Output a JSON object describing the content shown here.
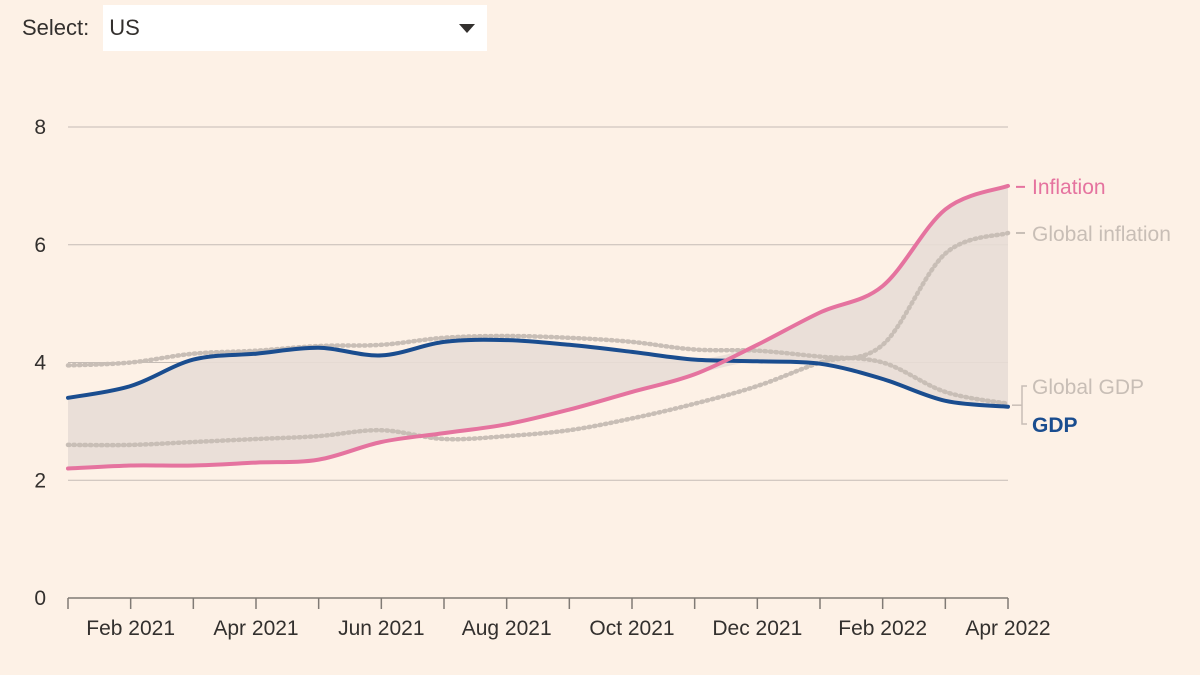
{
  "selector": {
    "label": "Select:",
    "value": "US"
  },
  "colors": {
    "background": "#fdf1e6",
    "inflation": "#e5739f",
    "gdp": "#1a4d8f",
    "global": "#c8beb6",
    "band": "#e8ddd6",
    "grid": "#c5bcb5",
    "axis": "#807a75"
  },
  "chart_data": {
    "type": "line",
    "x": [
      "2021-01",
      "2021-02",
      "2021-03",
      "2021-04",
      "2021-05",
      "2021-06",
      "2021-07",
      "2021-08",
      "2021-09",
      "2021-10",
      "2021-11",
      "2021-12",
      "2022-01",
      "2022-02",
      "2022-03",
      "2022-04"
    ],
    "x_ticks": [
      {
        "x": "2021-02",
        "label": "Feb 2021"
      },
      {
        "x": "2021-04",
        "label": "Apr 2021"
      },
      {
        "x": "2021-06",
        "label": "Jun 2021"
      },
      {
        "x": "2021-08",
        "label": "Aug 2021"
      },
      {
        "x": "2021-10",
        "label": "Oct 2021"
      },
      {
        "x": "2021-12",
        "label": "Dec 2021"
      },
      {
        "x": "2022-02",
        "label": "Feb 2022"
      },
      {
        "x": "2022-04",
        "label": "Apr 2022"
      }
    ],
    "y_ticks": [
      0,
      2,
      4,
      6,
      8
    ],
    "ylim": [
      0,
      8
    ],
    "grid": true,
    "legend": "right-end labels",
    "series": [
      {
        "key": "inflation",
        "name": "Inflation",
        "style": "solid",
        "values": [
          2.2,
          2.25,
          2.25,
          2.3,
          2.35,
          2.65,
          2.8,
          2.95,
          3.2,
          3.5,
          3.8,
          4.3,
          4.85,
          5.3,
          6.6,
          7.0
        ]
      },
      {
        "key": "global_inflation",
        "name": "Global inflation",
        "style": "dotted",
        "values": [
          2.6,
          2.6,
          2.65,
          2.7,
          2.75,
          2.85,
          2.7,
          2.75,
          2.85,
          3.05,
          3.3,
          3.6,
          4.0,
          4.3,
          5.85,
          6.2
        ]
      },
      {
        "key": "global_gdp",
        "name": "Global GDP",
        "style": "dotted",
        "values": [
          3.95,
          4.0,
          4.15,
          4.2,
          4.28,
          4.3,
          4.42,
          4.45,
          4.42,
          4.35,
          4.22,
          4.2,
          4.1,
          4.0,
          3.5,
          3.3
        ]
      },
      {
        "key": "gdp",
        "name": "GDP",
        "style": "solid",
        "values": [
          3.4,
          3.6,
          4.05,
          4.15,
          4.25,
          4.12,
          4.35,
          4.38,
          4.3,
          4.18,
          4.05,
          4.02,
          3.98,
          3.72,
          3.35,
          3.25
        ]
      }
    ]
  }
}
